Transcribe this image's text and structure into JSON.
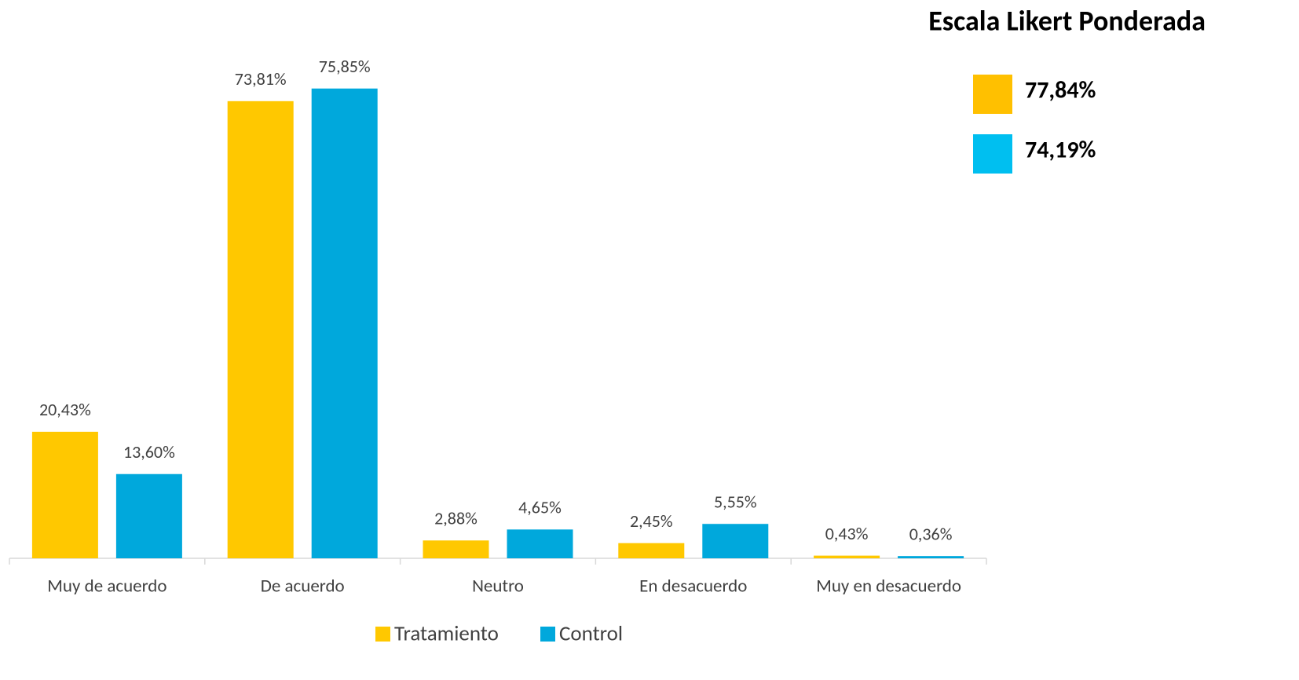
{
  "chart_data": {
    "type": "bar",
    "categories": [
      "Muy de acuerdo",
      "De acuerdo",
      "Neutro",
      "En desacuerdo",
      "Muy en desacuerdo"
    ],
    "series": [
      {
        "name": "Tratamiento",
        "color": "#ffc800",
        "values": [
          20.43,
          73.81,
          2.88,
          2.45,
          0.43
        ],
        "value_labels": [
          "20,43%",
          "73,81%",
          "2,88%",
          "2,45%",
          "0,43%"
        ]
      },
      {
        "name": "Control",
        "color": "#00a8dc",
        "values": [
          13.6,
          75.85,
          4.65,
          5.55,
          0.36
        ],
        "value_labels": [
          "13,60%",
          "75,85%",
          "4,65%",
          "5,55%",
          "0,36%"
        ]
      }
    ],
    "ylim": [
      0,
      80
    ],
    "legend": "bottom",
    "weighted": {
      "title": "Escala Likert Ponderada",
      "values": [
        77.84,
        74.19
      ],
      "value_labels": [
        "77,84%",
        "74,19%"
      ],
      "colors": [
        "#ffc000",
        "#00bff0"
      ]
    }
  }
}
